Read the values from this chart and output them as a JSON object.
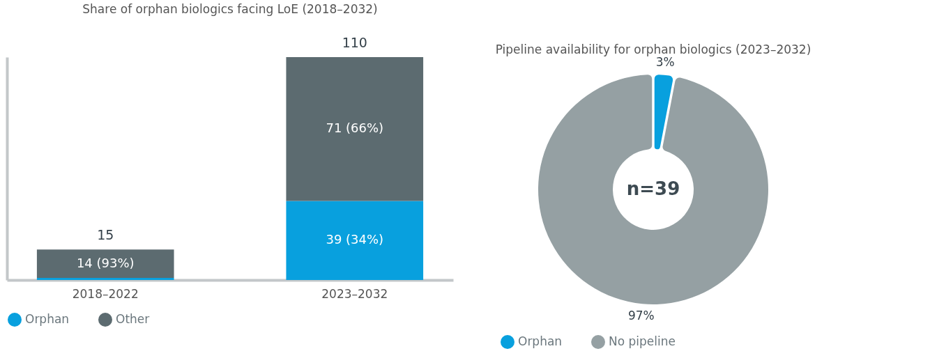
{
  "chart_data": [
    {
      "type": "bar",
      "title": "Share of orphan biologics facing LoE (2018–2032)",
      "categories": [
        "2018–2022",
        "2023–2032"
      ],
      "stacked": true,
      "series": [
        {
          "name": "Orphan",
          "color": "#08a0de",
          "values": [
            1,
            39
          ],
          "value_labels": [
            null,
            "39 (34%)"
          ]
        },
        {
          "name": "Other",
          "color": "#5c6b70",
          "values": [
            14,
            71
          ],
          "value_labels": [
            "14 (93%)",
            "71 (66%)"
          ]
        }
      ],
      "totals": [
        "15",
        "110"
      ],
      "legend": "bottom",
      "grid": false,
      "tick_labels": "x"
    },
    {
      "type": "donut",
      "title": "Pipeline availability for orphan biologics (2023–2032)",
      "categories": [
        "Orphan",
        "No pipeline"
      ],
      "values": [
        3,
        97
      ],
      "colors": [
        "#08a0de",
        "#95a0a3"
      ],
      "value_labels": [
        "3%",
        "97%"
      ],
      "annotations": [
        "n=39"
      ],
      "legend": "bottom"
    }
  ]
}
